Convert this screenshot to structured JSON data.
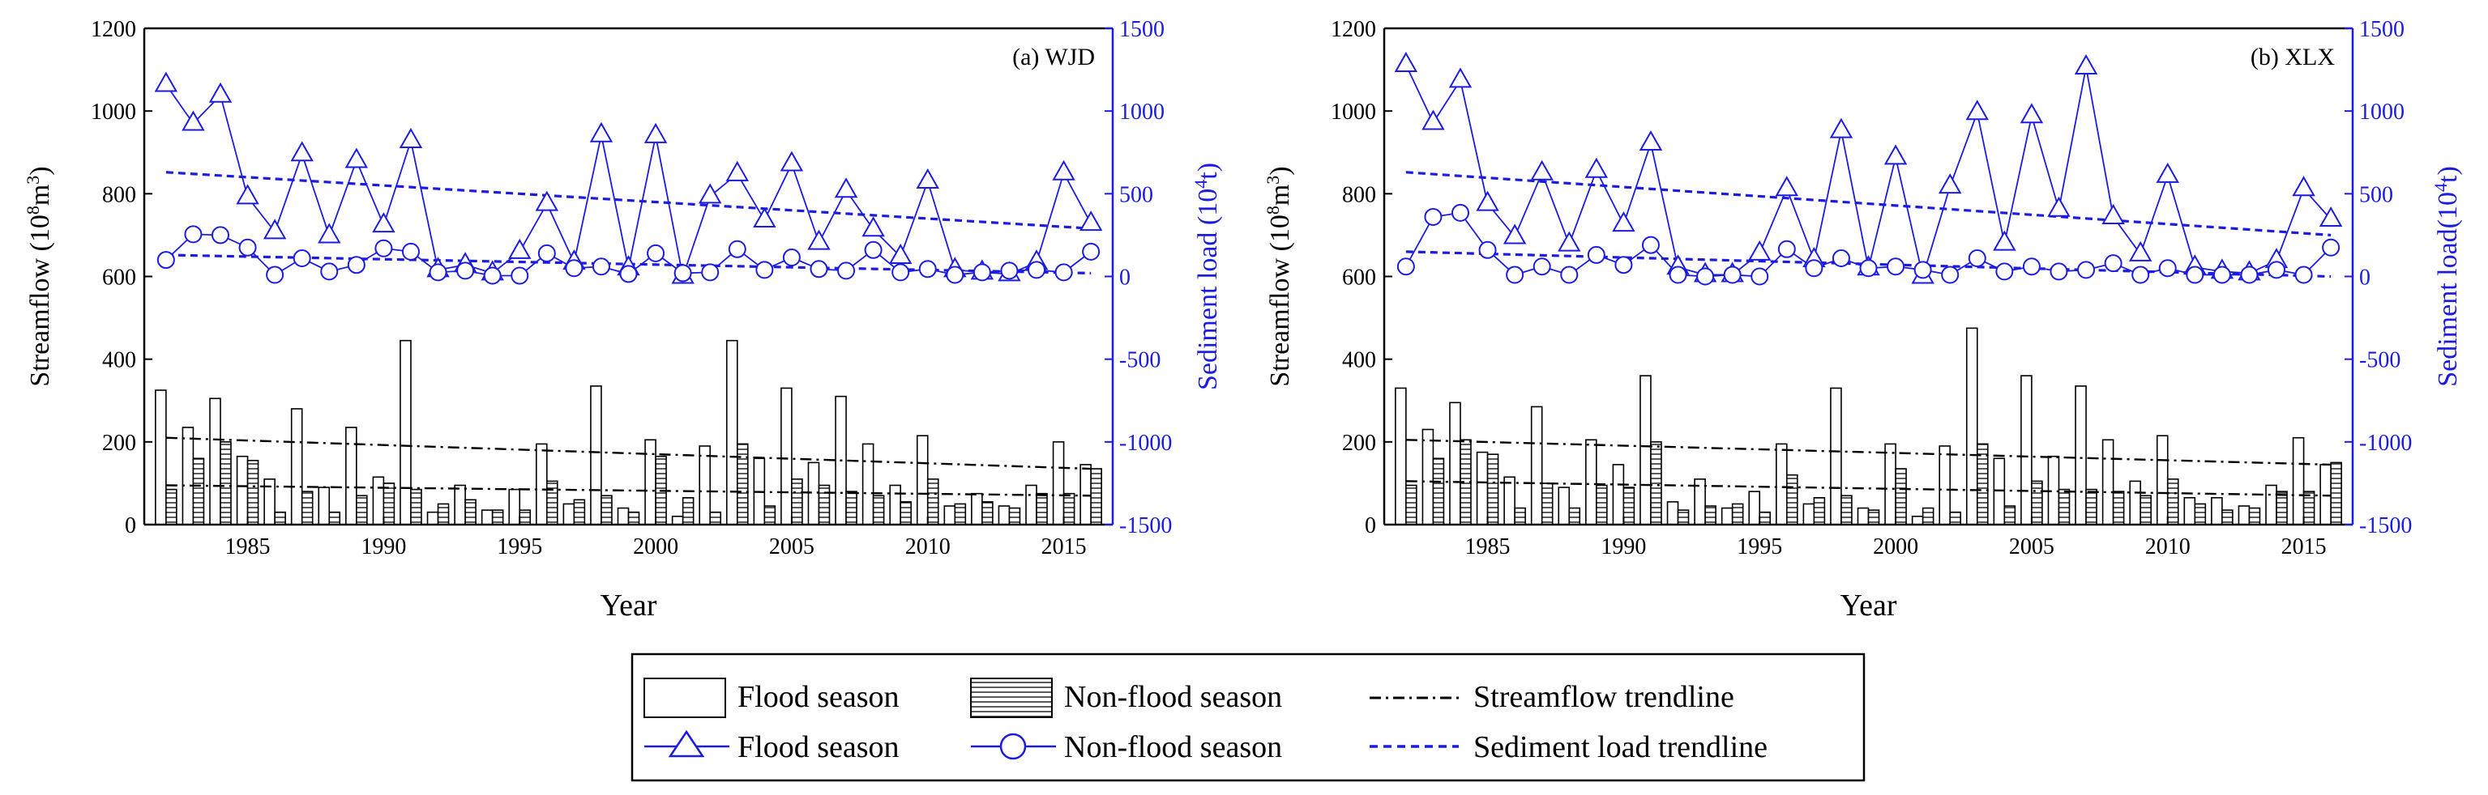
{
  "colors": {
    "sediment": "#1c1ce0",
    "streamflow": "#000000",
    "background": "#ffffff"
  },
  "legend": {
    "streamflow_flood": "Flood season",
    "streamflow_nonflood": "Non-flood season",
    "streamflow_trend": "Streamflow trendline",
    "sediment_flood": "Flood season",
    "sediment_nonflood": "Non-flood season",
    "sediment_trend": "Sediment load trendline"
  },
  "chart_data": [
    {
      "type": "bar",
      "title": "(a) WJD",
      "xlabel": "Year",
      "ylabel": "Streamflow (10^8 m^3)",
      "ylabel_parts": {
        "main": "Streamflow (10",
        "sup1": "8",
        "mid": "m",
        "sup2": "3",
        "end": ")"
      },
      "ylabel_right": "Sediment load (10^4 t)",
      "ylabel_right_parts": {
        "main": "Sediment load (10",
        "sup": "4",
        "end": "t)"
      },
      "xlim": [
        1981.2,
        2016.8
      ],
      "ylim": [
        0,
        1200
      ],
      "ylim_right": [
        -1500,
        1500
      ],
      "xticks": [
        1985,
        1990,
        1995,
        2000,
        2005,
        2010,
        2015
      ],
      "yticks": [
        0,
        200,
        400,
        600,
        800,
        1000,
        1200
      ],
      "yticks_right": [
        -1500,
        -1000,
        -500,
        0,
        500,
        1000,
        1500
      ],
      "x": [
        1982,
        1983,
        1984,
        1985,
        1986,
        1987,
        1988,
        1989,
        1990,
        1991,
        1992,
        1993,
        1994,
        1995,
        1996,
        1997,
        1998,
        1999,
        2000,
        2001,
        2002,
        2003,
        2004,
        2005,
        2006,
        2007,
        2008,
        2009,
        2010,
        2011,
        2012,
        2013,
        2014,
        2015,
        2016
      ],
      "series": [
        {
          "name": "Streamflow flood season",
          "axis": "left",
          "kind": "bar-open",
          "values": [
            325,
            235,
            305,
            165,
            110,
            280,
            90,
            235,
            115,
            445,
            30,
            95,
            35,
            85,
            195,
            50,
            335,
            40,
            205,
            20,
            190,
            445,
            160,
            330,
            150,
            310,
            195,
            95,
            215,
            45,
            75,
            45,
            95,
            200,
            145
          ]
        },
        {
          "name": "Streamflow non-flood season",
          "axis": "left",
          "kind": "bar-hatched",
          "values": [
            85,
            160,
            200,
            155,
            30,
            80,
            30,
            70,
            100,
            85,
            50,
            60,
            35,
            35,
            105,
            60,
            70,
            30,
            165,
            65,
            30,
            195,
            45,
            110,
            95,
            80,
            70,
            55,
            110,
            50,
            55,
            40,
            75,
            75,
            135
          ]
        },
        {
          "name": "Sediment flood season",
          "axis": "right",
          "kind": "line-triangle",
          "values": [
            1160,
            925,
            1095,
            480,
            270,
            740,
            245,
            700,
            310,
            820,
            40,
            70,
            20,
            150,
            440,
            85,
            855,
            50,
            850,
            0,
            485,
            620,
            340,
            680,
            205,
            520,
            285,
            120,
            575,
            40,
            25,
            15,
            85,
            625,
            320
          ]
        },
        {
          "name": "Sediment non-flood season",
          "axis": "right",
          "kind": "line-circle",
          "values": [
            100,
            255,
            250,
            175,
            10,
            110,
            30,
            70,
            170,
            150,
            25,
            35,
            5,
            5,
            140,
            50,
            60,
            15,
            140,
            20,
            25,
            165,
            40,
            115,
            45,
            35,
            160,
            25,
            45,
            10,
            25,
            35,
            40,
            25,
            150
          ]
        },
        {
          "name": "Streamflow trendline flood",
          "axis": "left",
          "kind": "trend-dashdot",
          "x": [
            1982,
            2016
          ],
          "values": [
            210,
            135
          ]
        },
        {
          "name": "Streamflow trendline non-flood",
          "axis": "left",
          "kind": "trend-dashdot",
          "x": [
            1982,
            2016
          ],
          "values": [
            95,
            70
          ]
        },
        {
          "name": "Sediment trendline flood",
          "axis": "right",
          "kind": "trend-dash",
          "x": [
            1982,
            2016
          ],
          "values": [
            630,
            290
          ]
        },
        {
          "name": "Sediment trendline non-flood",
          "axis": "right",
          "kind": "trend-dash",
          "x": [
            1982,
            2016
          ],
          "values": [
            130,
            20
          ]
        }
      ]
    },
    {
      "type": "bar",
      "title": "(b) XLX",
      "xlabel": "Year",
      "ylabel": "Streamflow (10^8 m^3)",
      "ylabel_parts": {
        "main": "Streamflow (10",
        "sup1": "8",
        "mid": "m",
        "sup2": "3",
        "end": ")"
      },
      "ylabel_right": "Sediment load(10^4 t)",
      "ylabel_right_parts": {
        "main": "Sediment load(10",
        "sup": "4",
        "end": "t)"
      },
      "xlim": [
        1981.2,
        2016.8
      ],
      "ylim": [
        0,
        1200
      ],
      "ylim_right": [
        -1500,
        1500
      ],
      "xticks": [
        1985,
        1990,
        1995,
        2000,
        2005,
        2010,
        2015
      ],
      "yticks": [
        0,
        200,
        400,
        600,
        800,
        1000,
        1200
      ],
      "yticks_right": [
        -1500,
        -1000,
        -500,
        0,
        500,
        1000,
        1500
      ],
      "x": [
        1982,
        1983,
        1984,
        1985,
        1986,
        1987,
        1988,
        1989,
        1990,
        1991,
        1992,
        1993,
        1994,
        1995,
        1996,
        1997,
        1998,
        1999,
        2000,
        2001,
        2002,
        2003,
        2004,
        2005,
        2006,
        2007,
        2008,
        2009,
        2010,
        2011,
        2012,
        2013,
        2014,
        2015,
        2016
      ],
      "series": [
        {
          "name": "Streamflow flood season",
          "axis": "left",
          "kind": "bar-open",
          "values": [
            330,
            230,
            295,
            175,
            115,
            285,
            90,
            205,
            145,
            360,
            55,
            110,
            40,
            80,
            195,
            50,
            330,
            40,
            195,
            20,
            190,
            475,
            160,
            360,
            165,
            335,
            205,
            105,
            215,
            65,
            65,
            45,
            95,
            210,
            145
          ]
        },
        {
          "name": "Streamflow non-flood season",
          "axis": "left",
          "kind": "bar-hatched",
          "values": [
            95,
            160,
            205,
            170,
            40,
            100,
            40,
            95,
            90,
            200,
            35,
            45,
            50,
            30,
            120,
            65,
            70,
            35,
            135,
            40,
            30,
            195,
            45,
            105,
            85,
            85,
            80,
            70,
            110,
            50,
            35,
            40,
            80,
            80,
            150
          ]
        },
        {
          "name": "Sediment flood season",
          "axis": "right",
          "kind": "line-triangle",
          "values": [
            1280,
            930,
            1185,
            440,
            240,
            625,
            195,
            640,
            315,
            805,
            55,
            10,
            10,
            140,
            530,
            100,
            880,
            50,
            720,
            0,
            545,
            990,
            200,
            970,
            405,
            1265,
            360,
            135,
            610,
            55,
            30,
            20,
            95,
            530,
            345
          ]
        },
        {
          "name": "Sediment non-flood season",
          "axis": "right",
          "kind": "line-circle",
          "values": [
            60,
            360,
            385,
            160,
            10,
            60,
            10,
            130,
            70,
            190,
            10,
            0,
            10,
            0,
            165,
            50,
            110,
            50,
            60,
            40,
            10,
            110,
            30,
            60,
            30,
            40,
            80,
            10,
            50,
            10,
            10,
            10,
            40,
            10,
            175
          ]
        },
        {
          "name": "Streamflow trendline flood",
          "axis": "left",
          "kind": "trend-dashdot",
          "x": [
            1982,
            2016
          ],
          "values": [
            205,
            145
          ]
        },
        {
          "name": "Streamflow trendline non-flood",
          "axis": "left",
          "kind": "trend-dashdot",
          "x": [
            1982,
            2016
          ],
          "values": [
            105,
            70
          ]
        },
        {
          "name": "Sediment trendline flood",
          "axis": "right",
          "kind": "trend-dash",
          "x": [
            1982,
            2016
          ],
          "values": [
            630,
            250
          ]
        },
        {
          "name": "Sediment trendline non-flood",
          "axis": "right",
          "kind": "trend-dash",
          "x": [
            1982,
            2016
          ],
          "values": [
            150,
            0
          ]
        }
      ]
    }
  ]
}
